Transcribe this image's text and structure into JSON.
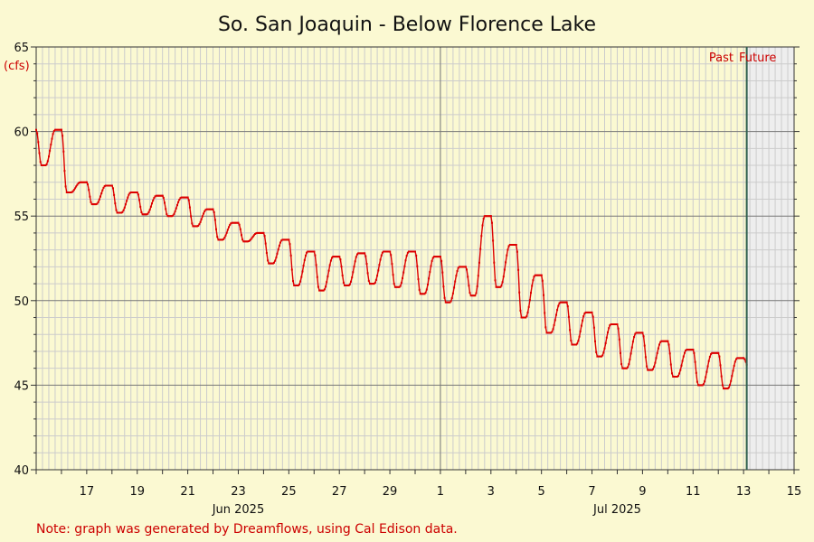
{
  "chart_data": {
    "type": "line",
    "title": "So. San Joaquin - Below Florence Lake",
    "ylabel": "(cfs)",
    "ylim": [
      40,
      65
    ],
    "y_ticks": [
      40,
      45,
      50,
      55,
      60,
      65
    ],
    "xlim": [
      "2025-06-15",
      "2025-07-15"
    ],
    "x_ticks": [
      {
        "label": "17",
        "date": "2025-06-17"
      },
      {
        "label": "19",
        "date": "2025-06-19"
      },
      {
        "label": "21",
        "date": "2025-06-21"
      },
      {
        "label": "23",
        "date": "2025-06-23"
      },
      {
        "label": "25",
        "date": "2025-06-25"
      },
      {
        "label": "27",
        "date": "2025-06-27"
      },
      {
        "label": "29",
        "date": "2025-06-29"
      },
      {
        "label": "1",
        "date": "2025-07-01"
      },
      {
        "label": "3",
        "date": "2025-07-03"
      },
      {
        "label": "5",
        "date": "2025-07-05"
      },
      {
        "label": "7",
        "date": "2025-07-07"
      },
      {
        "label": "9",
        "date": "2025-07-09"
      },
      {
        "label": "11",
        "date": "2025-07-11"
      },
      {
        "label": "13",
        "date": "2025-07-13"
      },
      {
        "label": "15",
        "date": "2025-07-15"
      }
    ],
    "month_labels": [
      {
        "label": "Jun 2025",
        "date": "2025-06-23"
      },
      {
        "label": "Jul 2025",
        "date": "2025-07-08"
      }
    ],
    "month_boundary": "2025-07-01",
    "grid": true,
    "now_date": "2025-07-13",
    "now_hour": 3,
    "past_label": "Past",
    "future_label": "Future",
    "note": "Note: graph was generated by Dreamflows, using Cal Edison data.",
    "series": [
      {
        "color": "#dd0000",
        "daily": [
          {
            "date": "2025-06-15",
            "max": 60.1,
            "min": 58.0
          },
          {
            "date": "2025-06-16",
            "max": 57.0,
            "min": 56.4
          },
          {
            "date": "2025-06-17",
            "max": 56.8,
            "min": 55.7
          },
          {
            "date": "2025-06-18",
            "max": 56.4,
            "min": 55.2
          },
          {
            "date": "2025-06-19",
            "max": 56.2,
            "min": 55.1
          },
          {
            "date": "2025-06-20",
            "max": 56.1,
            "min": 55.0
          },
          {
            "date": "2025-06-21",
            "max": 55.4,
            "min": 54.4
          },
          {
            "date": "2025-06-22",
            "max": 54.6,
            "min": 53.6
          },
          {
            "date": "2025-06-23",
            "max": 54.0,
            "min": 53.5
          },
          {
            "date": "2025-06-24",
            "max": 53.6,
            "min": 52.2
          },
          {
            "date": "2025-06-25",
            "max": 52.9,
            "min": 50.9
          },
          {
            "date": "2025-06-26",
            "max": 52.6,
            "min": 50.6
          },
          {
            "date": "2025-06-27",
            "max": 52.8,
            "min": 50.9
          },
          {
            "date": "2025-06-28",
            "max": 52.9,
            "min": 51.0
          },
          {
            "date": "2025-06-29",
            "max": 52.9,
            "min": 50.8
          },
          {
            "date": "2025-06-30",
            "max": 52.6,
            "min": 50.4
          },
          {
            "date": "2025-07-01",
            "max": 52.0,
            "min": 49.9
          },
          {
            "date": "2025-07-02",
            "max": 55.0,
            "min": 50.3
          },
          {
            "date": "2025-07-03",
            "max": 53.3,
            "min": 50.8
          },
          {
            "date": "2025-07-04",
            "max": 51.5,
            "min": 49.0
          },
          {
            "date": "2025-07-05",
            "max": 49.9,
            "min": 48.1
          },
          {
            "date": "2025-07-06",
            "max": 49.3,
            "min": 47.4
          },
          {
            "date": "2025-07-07",
            "max": 48.6,
            "min": 46.7
          },
          {
            "date": "2025-07-08",
            "max": 48.1,
            "min": 46.0
          },
          {
            "date": "2025-07-09",
            "max": 47.6,
            "min": 45.9
          },
          {
            "date": "2025-07-10",
            "max": 47.1,
            "min": 45.5
          },
          {
            "date": "2025-07-11",
            "max": 46.9,
            "min": 45.0
          },
          {
            "date": "2025-07-12",
            "max": 46.6,
            "min": 44.8
          },
          {
            "date": "2025-07-13",
            "max": 46.3,
            "min": 46.0
          }
        ]
      }
    ]
  }
}
